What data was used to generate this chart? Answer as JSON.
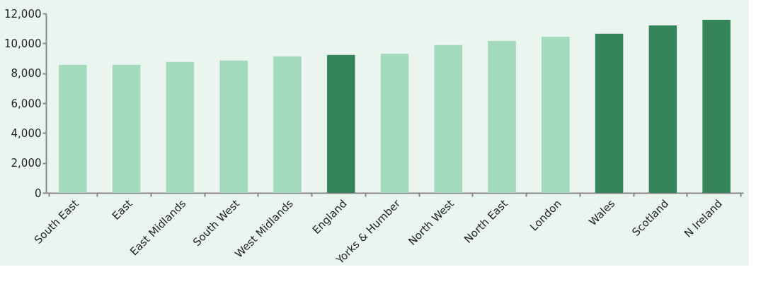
{
  "chart_data": {
    "type": "bar",
    "categories": [
      "South East",
      "East",
      "East Midlands",
      "South West",
      "West Midlands",
      "England",
      "Yorks & Humber",
      "North West",
      "North East",
      "London",
      "Wales",
      "Scotland",
      "N Ireland"
    ],
    "values": [
      8560,
      8560,
      8750,
      8850,
      9130,
      9220,
      9310,
      9880,
      10160,
      10440,
      10640,
      11200,
      11580
    ],
    "colors": [
      "#a3d9bd",
      "#a3d9bd",
      "#a3d9bd",
      "#a3d9bd",
      "#a3d9bd",
      "#36845c",
      "#a3d9bd",
      "#a3d9bd",
      "#a3d9bd",
      "#a3d9bd",
      "#36845c",
      "#36845c",
      "#36845c"
    ],
    "ylim": [
      0,
      12000
    ],
    "yticks": [
      0,
      {
        "value": 2000,
        "label": "2,000"
      },
      {
        "value": 4000,
        "label": "4,000"
      },
      {
        "value": 6000,
        "label": "6,000"
      },
      {
        "value": 8000,
        "label": "8,000"
      },
      {
        "value": 10000,
        "label": "10,000"
      },
      {
        "value": 12000,
        "label": "12,000"
      }
    ],
    "grid": false
  }
}
